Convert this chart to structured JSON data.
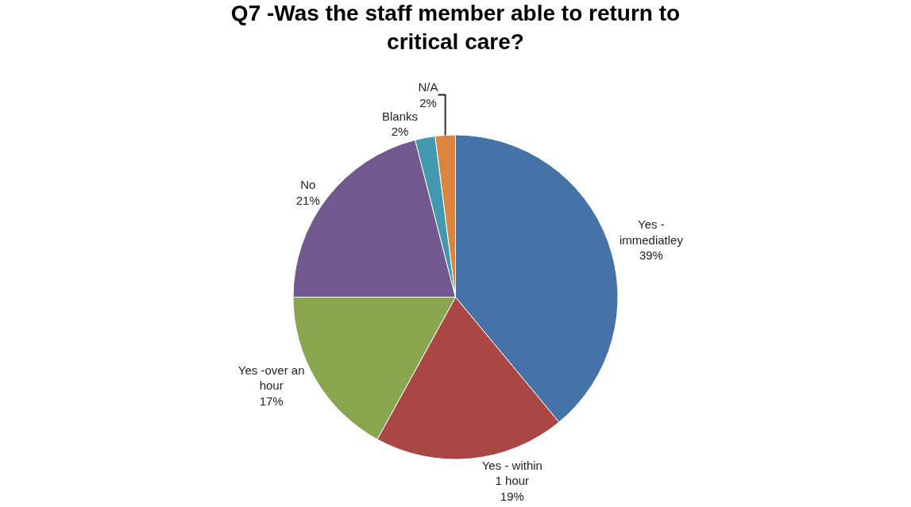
{
  "chart_data": {
    "type": "pie",
    "title": "Q7 -Was the staff member able to return to critical care?",
    "categories": [
      "Yes - immediatley",
      "Yes - within 1 hour",
      "Yes -over an hour",
      "No",
      "Blanks",
      "N/A"
    ],
    "values": [
      39,
      19,
      17,
      21,
      2,
      2
    ],
    "value_labels": [
      "39%",
      "19%",
      "17%",
      "21%",
      "2%",
      "2%"
    ],
    "colors": [
      "#4572a7",
      "#aa4643",
      "#89a54e",
      "#71588f",
      "#4198af",
      "#db843d"
    ],
    "legend": false
  }
}
